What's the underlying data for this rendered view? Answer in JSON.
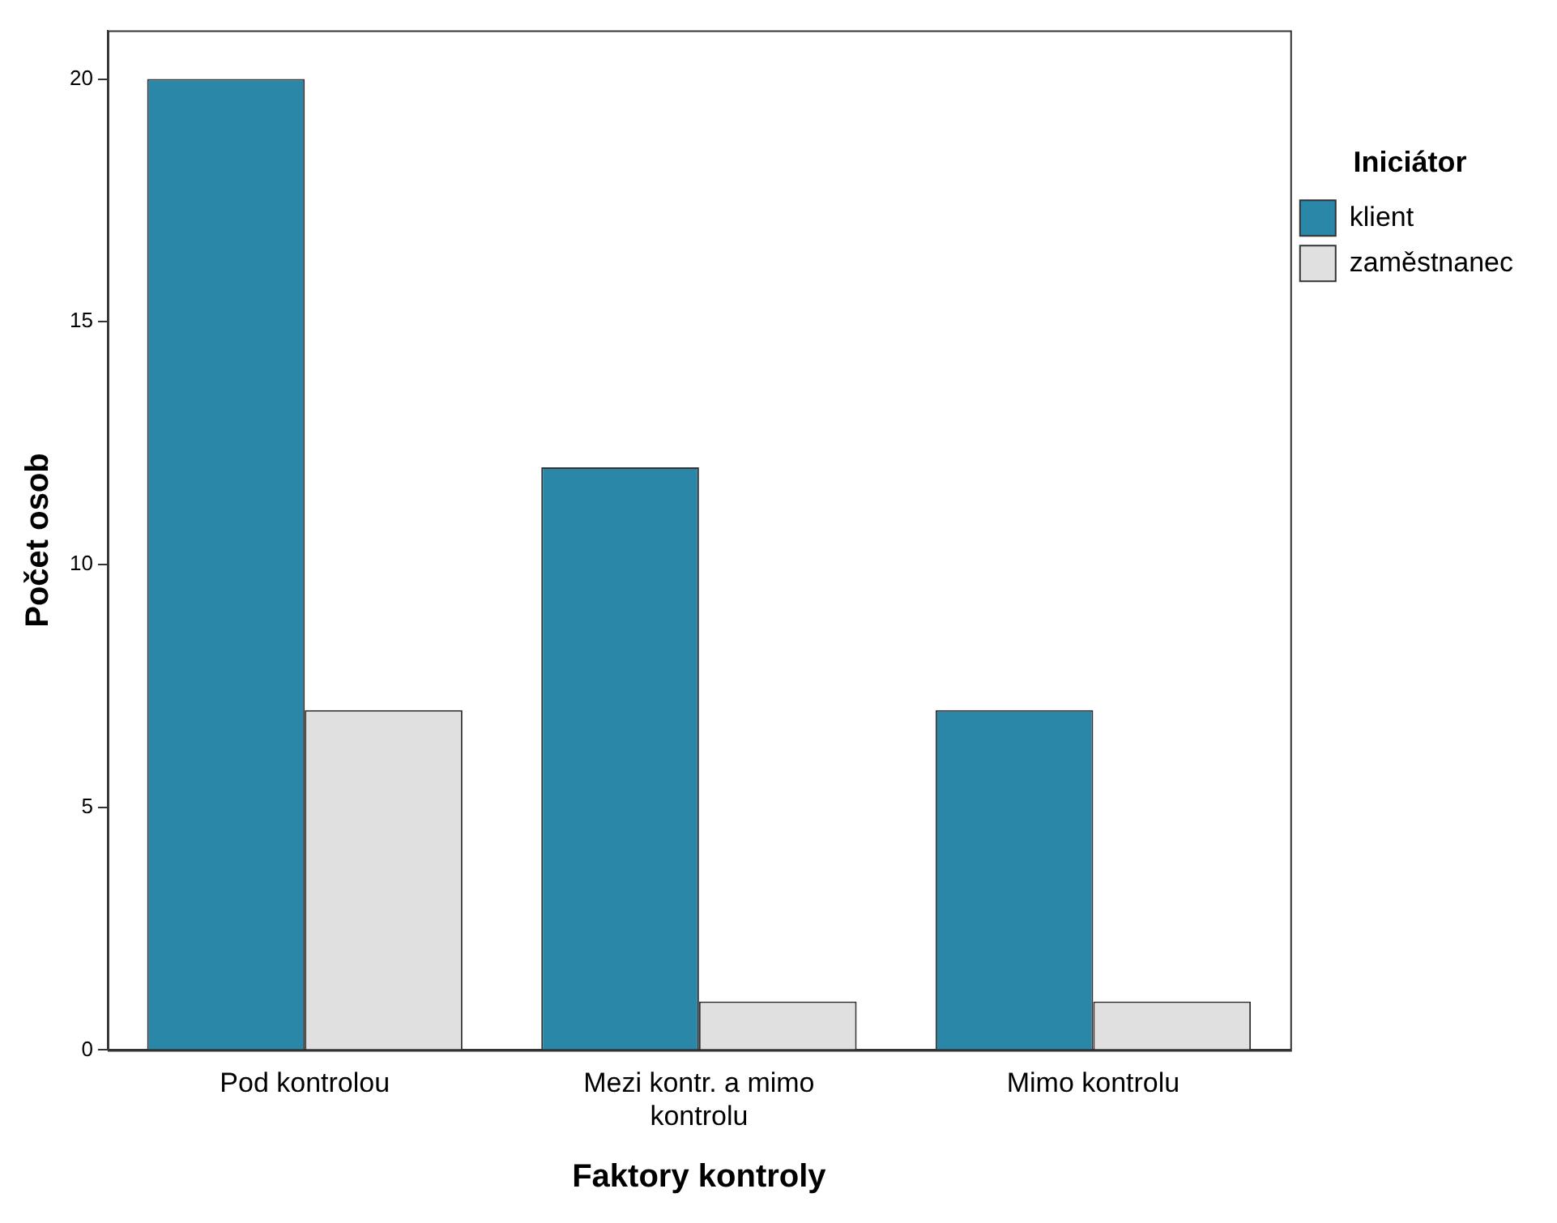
{
  "chart_data": {
    "type": "bar",
    "xlabel": "Faktory kontroly",
    "ylabel": "Počet osob",
    "legend_title": "Iniciátor",
    "categories": [
      "Pod kontrolou",
      "Mezi kontr. a mimo kontrolu",
      "Mimo kontrolu"
    ],
    "series": [
      {
        "name": "klient",
        "color": "#2a87a8",
        "values": [
          20,
          12,
          7
        ]
      },
      {
        "name": "zaměstnanec",
        "color": "#e0e0e0",
        "values": [
          7,
          1,
          1
        ]
      }
    ],
    "ylim": [
      0,
      21
    ],
    "yticks": [
      0,
      5,
      10,
      15,
      20
    ],
    "grid": false,
    "legend": "right"
  }
}
